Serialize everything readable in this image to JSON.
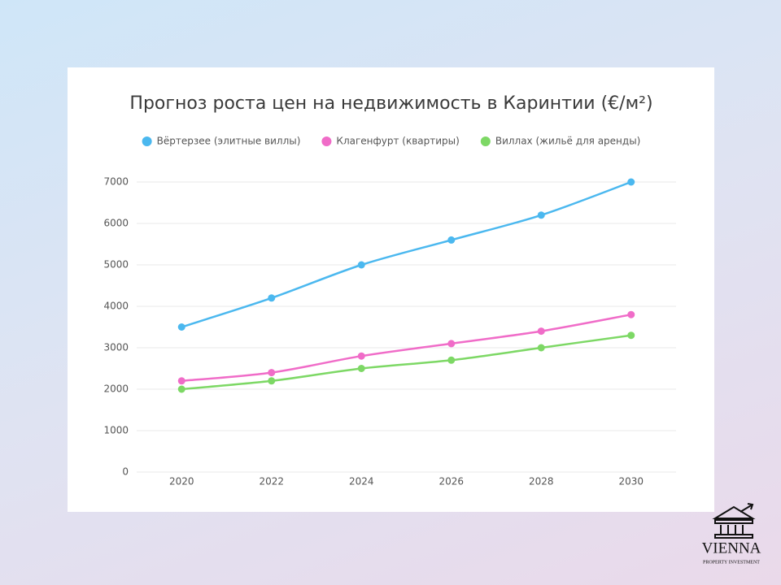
{
  "chart_data": {
    "type": "line",
    "title": "Прогноз роста цен на недвижимость в Каринтии (€/м²)",
    "categories": [
      "2020",
      "2022",
      "2024",
      "2026",
      "2028",
      "2030"
    ],
    "series": [
      {
        "name": "Вёртерзее (элитные виллы)",
        "color": "#4bb8ef",
        "values": [
          3500,
          4200,
          5000,
          5600,
          6200,
          7000
        ]
      },
      {
        "name": "Клагенфурт (квартиры)",
        "color": "#f06cc8",
        "values": [
          2200,
          2400,
          2800,
          3100,
          3400,
          3800
        ]
      },
      {
        "name": "Виллах (жильё для аренды)",
        "color": "#7dd865",
        "values": [
          2000,
          2200,
          2500,
          2700,
          3000,
          3300
        ]
      }
    ],
    "ylim": [
      0,
      7000
    ],
    "yticks": [
      0,
      1000,
      2000,
      3000,
      4000,
      5000,
      6000,
      7000
    ],
    "grid": true,
    "legend": "top"
  },
  "logo": {
    "name": "VIENNA",
    "tagline": "PROPERTY INVESTMENT"
  }
}
